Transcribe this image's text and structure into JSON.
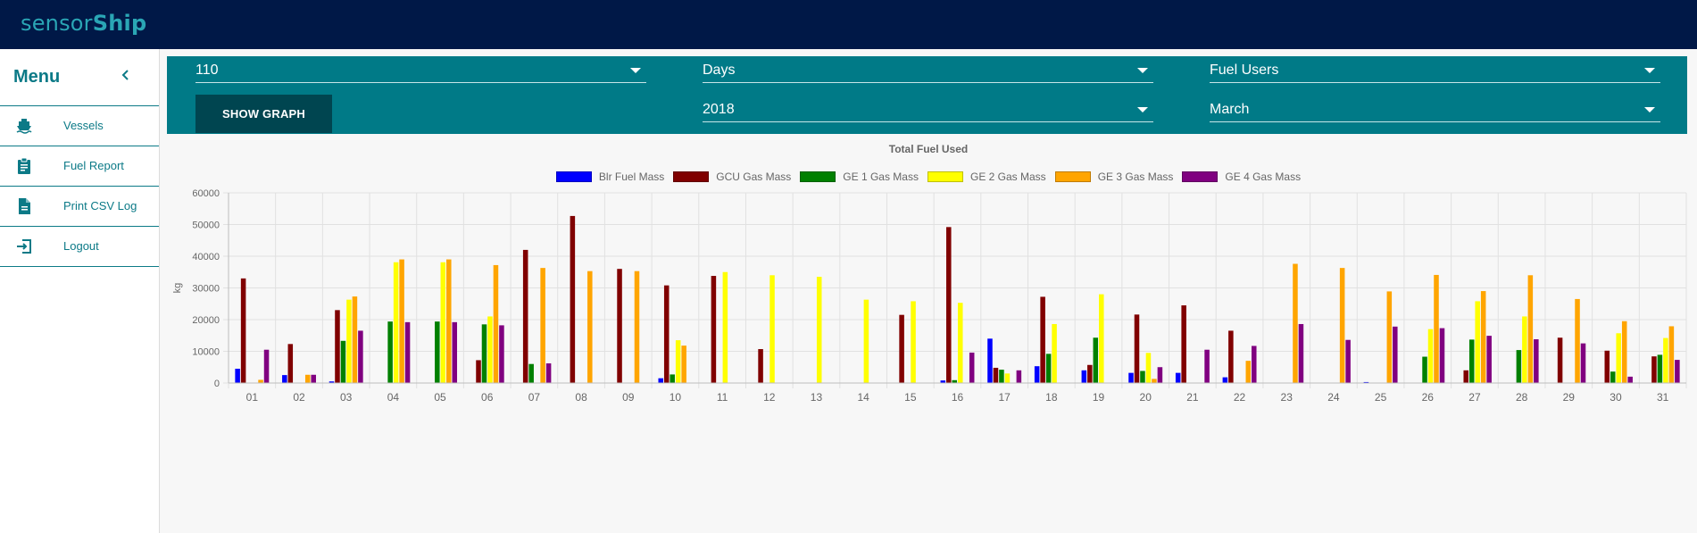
{
  "app": {
    "brand_light": "sensor",
    "brand_bold": "Ship"
  },
  "sidebar": {
    "title": "Menu",
    "collapse_icon": "chevron-left-icon",
    "items": [
      {
        "label": "Vessels",
        "icon": "ship-icon"
      },
      {
        "label": "Fuel Report",
        "icon": "clipboard-icon"
      },
      {
        "label": "Print CSV Log",
        "icon": "document-icon"
      },
      {
        "label": "Logout",
        "icon": "logout-icon"
      }
    ]
  },
  "controls": {
    "vessel": "110",
    "period": "Days",
    "type": "Fuel Users",
    "year": "2018",
    "month": "March",
    "show_graph_label": "SHOW GRAPH"
  },
  "colors": {
    "topbar": "#001847",
    "accent": "#007a87",
    "button": "#004550"
  },
  "chart_data": {
    "type": "bar",
    "title": "Total Fuel Used",
    "xlabel": "",
    "ylabel": "kg",
    "ylim": [
      0,
      60000
    ],
    "yticks": [
      0,
      10000,
      20000,
      30000,
      40000,
      50000,
      60000
    ],
    "grid": true,
    "legend_position": "top",
    "categories": [
      "01",
      "02",
      "03",
      "04",
      "05",
      "06",
      "07",
      "08",
      "09",
      "10",
      "11",
      "12",
      "13",
      "14",
      "15",
      "16",
      "17",
      "18",
      "19",
      "20",
      "21",
      "22",
      "23",
      "24",
      "25",
      "26",
      "27",
      "28",
      "29",
      "30",
      "31"
    ],
    "series": [
      {
        "name": "Blr Fuel Mass",
        "color": "#0000ff",
        "values": [
          4500,
          2500,
          500,
          0,
          0,
          0,
          0,
          0,
          0,
          1500,
          0,
          0,
          0,
          0,
          0,
          800,
          14000,
          5300,
          4000,
          3200,
          3200,
          1800,
          0,
          0,
          300,
          0,
          0,
          0,
          0,
          0,
          0
        ]
      },
      {
        "name": "GCU Gas Mass",
        "color": "#800000",
        "values": [
          33000,
          12300,
          23000,
          0,
          0,
          7200,
          42000,
          52700,
          36000,
          30800,
          33800,
          10700,
          0,
          0,
          21500,
          49200,
          4800,
          27200,
          5700,
          21600,
          24500,
          16500,
          0,
          0,
          0,
          0,
          4000,
          0,
          14300,
          10200,
          8400
        ]
      },
      {
        "name": "GE 1 Gas Mass",
        "color": "#008000",
        "values": [
          0,
          0,
          13300,
          19400,
          19400,
          18500,
          6000,
          0,
          0,
          2700,
          0,
          0,
          0,
          0,
          0,
          900,
          4200,
          9200,
          14300,
          3800,
          0,
          0,
          0,
          0,
          0,
          8300,
          13700,
          10400,
          0,
          3600,
          8900
        ]
      },
      {
        "name": "GE 2 Gas Mass",
        "color": "#ffff00",
        "values": [
          0,
          0,
          26300,
          38100,
          38100,
          21000,
          0,
          0,
          0,
          13500,
          35000,
          34000,
          33500,
          26300,
          25800,
          25300,
          3000,
          18600,
          28000,
          9500,
          0,
          0,
          0,
          0,
          0,
          17000,
          25800,
          21000,
          0,
          15700,
          14200
        ]
      },
      {
        "name": "GE 3 Gas Mass",
        "color": "#ffa500",
        "values": [
          1000,
          2600,
          27300,
          39000,
          39000,
          37200,
          36300,
          35300,
          35300,
          11800,
          0,
          0,
          0,
          0,
          0,
          0,
          0,
          0,
          0,
          1300,
          0,
          7000,
          37600,
          36300,
          28900,
          34100,
          29000,
          34000,
          26500,
          19500,
          17900
        ]
      },
      {
        "name": "GE 4 Gas Mass",
        "color": "#800080",
        "values": [
          10500,
          2600,
          16500,
          19200,
          19200,
          18200,
          6200,
          0,
          0,
          0,
          0,
          0,
          0,
          0,
          0,
          9600,
          4000,
          0,
          0,
          5000,
          10500,
          11700,
          18600,
          13600,
          17800,
          17300,
          14900,
          13800,
          12500,
          2000,
          7300
        ]
      }
    ]
  }
}
